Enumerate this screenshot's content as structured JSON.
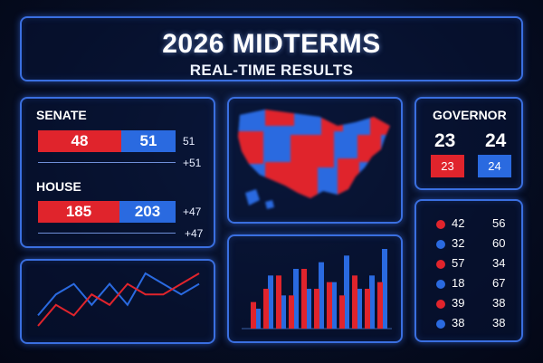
{
  "header": {
    "title": "2026 MIDTERMS",
    "subtitle": "REAL-TIME RESULTS"
  },
  "senate": {
    "label": "SENATE",
    "red_value": "48",
    "blue_value": "51",
    "side_value": "51",
    "change_value": "+51"
  },
  "house": {
    "label": "HOUSE",
    "red_value": "185",
    "blue_value": "203",
    "side_value": "+47",
    "change_value": "+47"
  },
  "governor": {
    "label": "GOVERNOR",
    "red_big": "23",
    "blue_big": "24",
    "red_box": "23",
    "blue_box": "24"
  },
  "tally": [
    {
      "color": "red",
      "a": "42",
      "b": "56"
    },
    {
      "color": "blue",
      "a": "32",
      "b": "60"
    },
    {
      "color": "red",
      "a": "57",
      "b": "34"
    },
    {
      "color": "blue",
      "a": "18",
      "b": "67"
    },
    {
      "color": "red",
      "a": "39",
      "b": "38"
    },
    {
      "color": "blue",
      "a": "38",
      "b": "38"
    }
  ],
  "line_chart": {
    "red": [
      2,
      4,
      3,
      5,
      4,
      6,
      5,
      5,
      6,
      7
    ],
    "blue": [
      3,
      5,
      6,
      4,
      6,
      4,
      7,
      6,
      5,
      6
    ]
  },
  "bar_chart": {
    "red": [
      4,
      6,
      8,
      5,
      9,
      6,
      7,
      5,
      8,
      6,
      7
    ],
    "blue": [
      3,
      8,
      5,
      9,
      6,
      10,
      7,
      11,
      6,
      8,
      12
    ]
  },
  "colors": {
    "red": "#e0242c",
    "blue": "#2a6ae0",
    "accent": "#3a6fe0",
    "background": "#060d22"
  }
}
